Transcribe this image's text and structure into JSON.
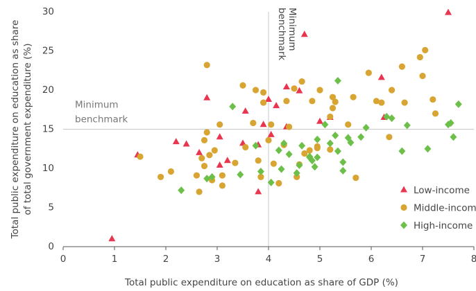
{
  "chart_data": {
    "type": "scatter",
    "xlabel": "Total public expenditure on education as share of GDP (%)",
    "ylabel": [
      "Total public expenditure on education as share",
      "of total government expenditure (%)"
    ],
    "xlim": [
      0,
      8
    ],
    "xticks": [
      0,
      1,
      2,
      3,
      4,
      5,
      6,
      7,
      8
    ],
    "ylim": [
      0,
      30
    ],
    "yticks": [
      0,
      5,
      10,
      15,
      20,
      25,
      30
    ],
    "legend": "lower right",
    "benchmarks": [
      {
        "axis": "x",
        "value": 4,
        "label": [
          "Minimum",
          "benchmark"
        ]
      },
      {
        "axis": "y",
        "value": 15,
        "label": [
          "Minimum",
          "benchmark"
        ]
      }
    ],
    "series": [
      {
        "name": "Low-income",
        "color": "#e8364f",
        "marker": "triangle",
        "x": [
          0.95,
          1.45,
          2.2,
          2.4,
          2.65,
          2.8,
          3.05,
          3.05,
          3.2,
          3.55,
          3.5,
          3.8,
          3.9,
          4,
          4.05,
          4.15,
          4.35,
          4.35,
          4.6,
          4.7,
          5,
          5.2,
          6.2,
          6.25,
          7.5,
          3.8
        ],
        "y": [
          1,
          11.7,
          13.4,
          13.1,
          12,
          19,
          10.4,
          14,
          11,
          17.3,
          13.2,
          7,
          15.6,
          18.8,
          14.3,
          18,
          20.4,
          15.3,
          19.9,
          27.1,
          16,
          16.5,
          21.6,
          16.5,
          29.9,
          13
        ]
      },
      {
        "name": "Middle-income",
        "color": "#d9a532",
        "marker": "circle",
        "x": [
          1.5,
          1.9,
          2.1,
          2.6,
          2.65,
          2.7,
          2.75,
          2.75,
          2.8,
          2.8,
          2.85,
          2.9,
          2.95,
          3.05,
          3.1,
          3.1,
          3.35,
          3.5,
          3.55,
          3.7,
          3.75,
          3.8,
          3.85,
          3.9,
          3.9,
          4,
          4.05,
          4.1,
          4.2,
          4.3,
          4.35,
          4.4,
          4.5,
          4.55,
          4.65,
          4.7,
          4.8,
          4.85,
          4.95,
          5,
          5.2,
          5.2,
          5.25,
          5.25,
          5.3,
          5.55,
          5.65,
          5.7,
          5.95,
          6.1,
          6.2,
          6.35,
          6.4,
          6.6,
          6.65,
          6.95,
          7,
          7.05,
          7.2,
          7.25,
          4.95,
          4.6
        ],
        "y": [
          11.5,
          8.9,
          9.6,
          9.1,
          7,
          11.3,
          10.3,
          13.6,
          14.6,
          23.2,
          11.7,
          8.5,
          12.3,
          15.6,
          9.1,
          7.8,
          10.7,
          20.6,
          12.7,
          15.8,
          20,
          11,
          8.9,
          18.4,
          19.7,
          13.6,
          15.6,
          10.6,
          8.1,
          13,
          18.6,
          15.3,
          20.2,
          8.9,
          21.1,
          11.9,
          12.3,
          18.6,
          12.6,
          20,
          12.4,
          16.6,
          17.7,
          19.1,
          18.5,
          15.6,
          19.1,
          8.8,
          22.2,
          18.6,
          18.4,
          14,
          20,
          23,
          18.4,
          24.2,
          21.8,
          25.1,
          18.8,
          17,
          12.8,
          10.5
        ]
      },
      {
        "name": "High-income",
        "color": "#6cc04a",
        "marker": "diamond",
        "x": [
          2.3,
          2.8,
          2.9,
          3.3,
          3.45,
          3.75,
          3.85,
          4.05,
          4.2,
          4.25,
          4.3,
          4.4,
          4.55,
          4.6,
          4.65,
          4.8,
          4.8,
          4.85,
          4.9,
          4.95,
          5.1,
          5.2,
          5.3,
          5.35,
          5.35,
          5.45,
          5.45,
          5.55,
          5.6,
          5.8,
          5.9,
          6.3,
          6.4,
          6.6,
          6.7,
          7.1,
          7.5,
          7.55,
          7.6,
          7.7,
          4.95
        ],
        "y": [
          7.2,
          8.7,
          8.9,
          17.9,
          9.2,
          12.9,
          9.6,
          8.2,
          12.3,
          9.9,
          13.2,
          11.8,
          9.4,
          10.4,
          12.9,
          11.5,
          11.4,
          11,
          10.2,
          13.7,
          15.6,
          13.2,
          14.2,
          12.2,
          21.2,
          10.8,
          9.7,
          13.9,
          13.3,
          14,
          15.2,
          16.6,
          16.4,
          12.2,
          15.5,
          12.5,
          15.6,
          15.8,
          14,
          18.2,
          11.4
        ]
      }
    ]
  }
}
